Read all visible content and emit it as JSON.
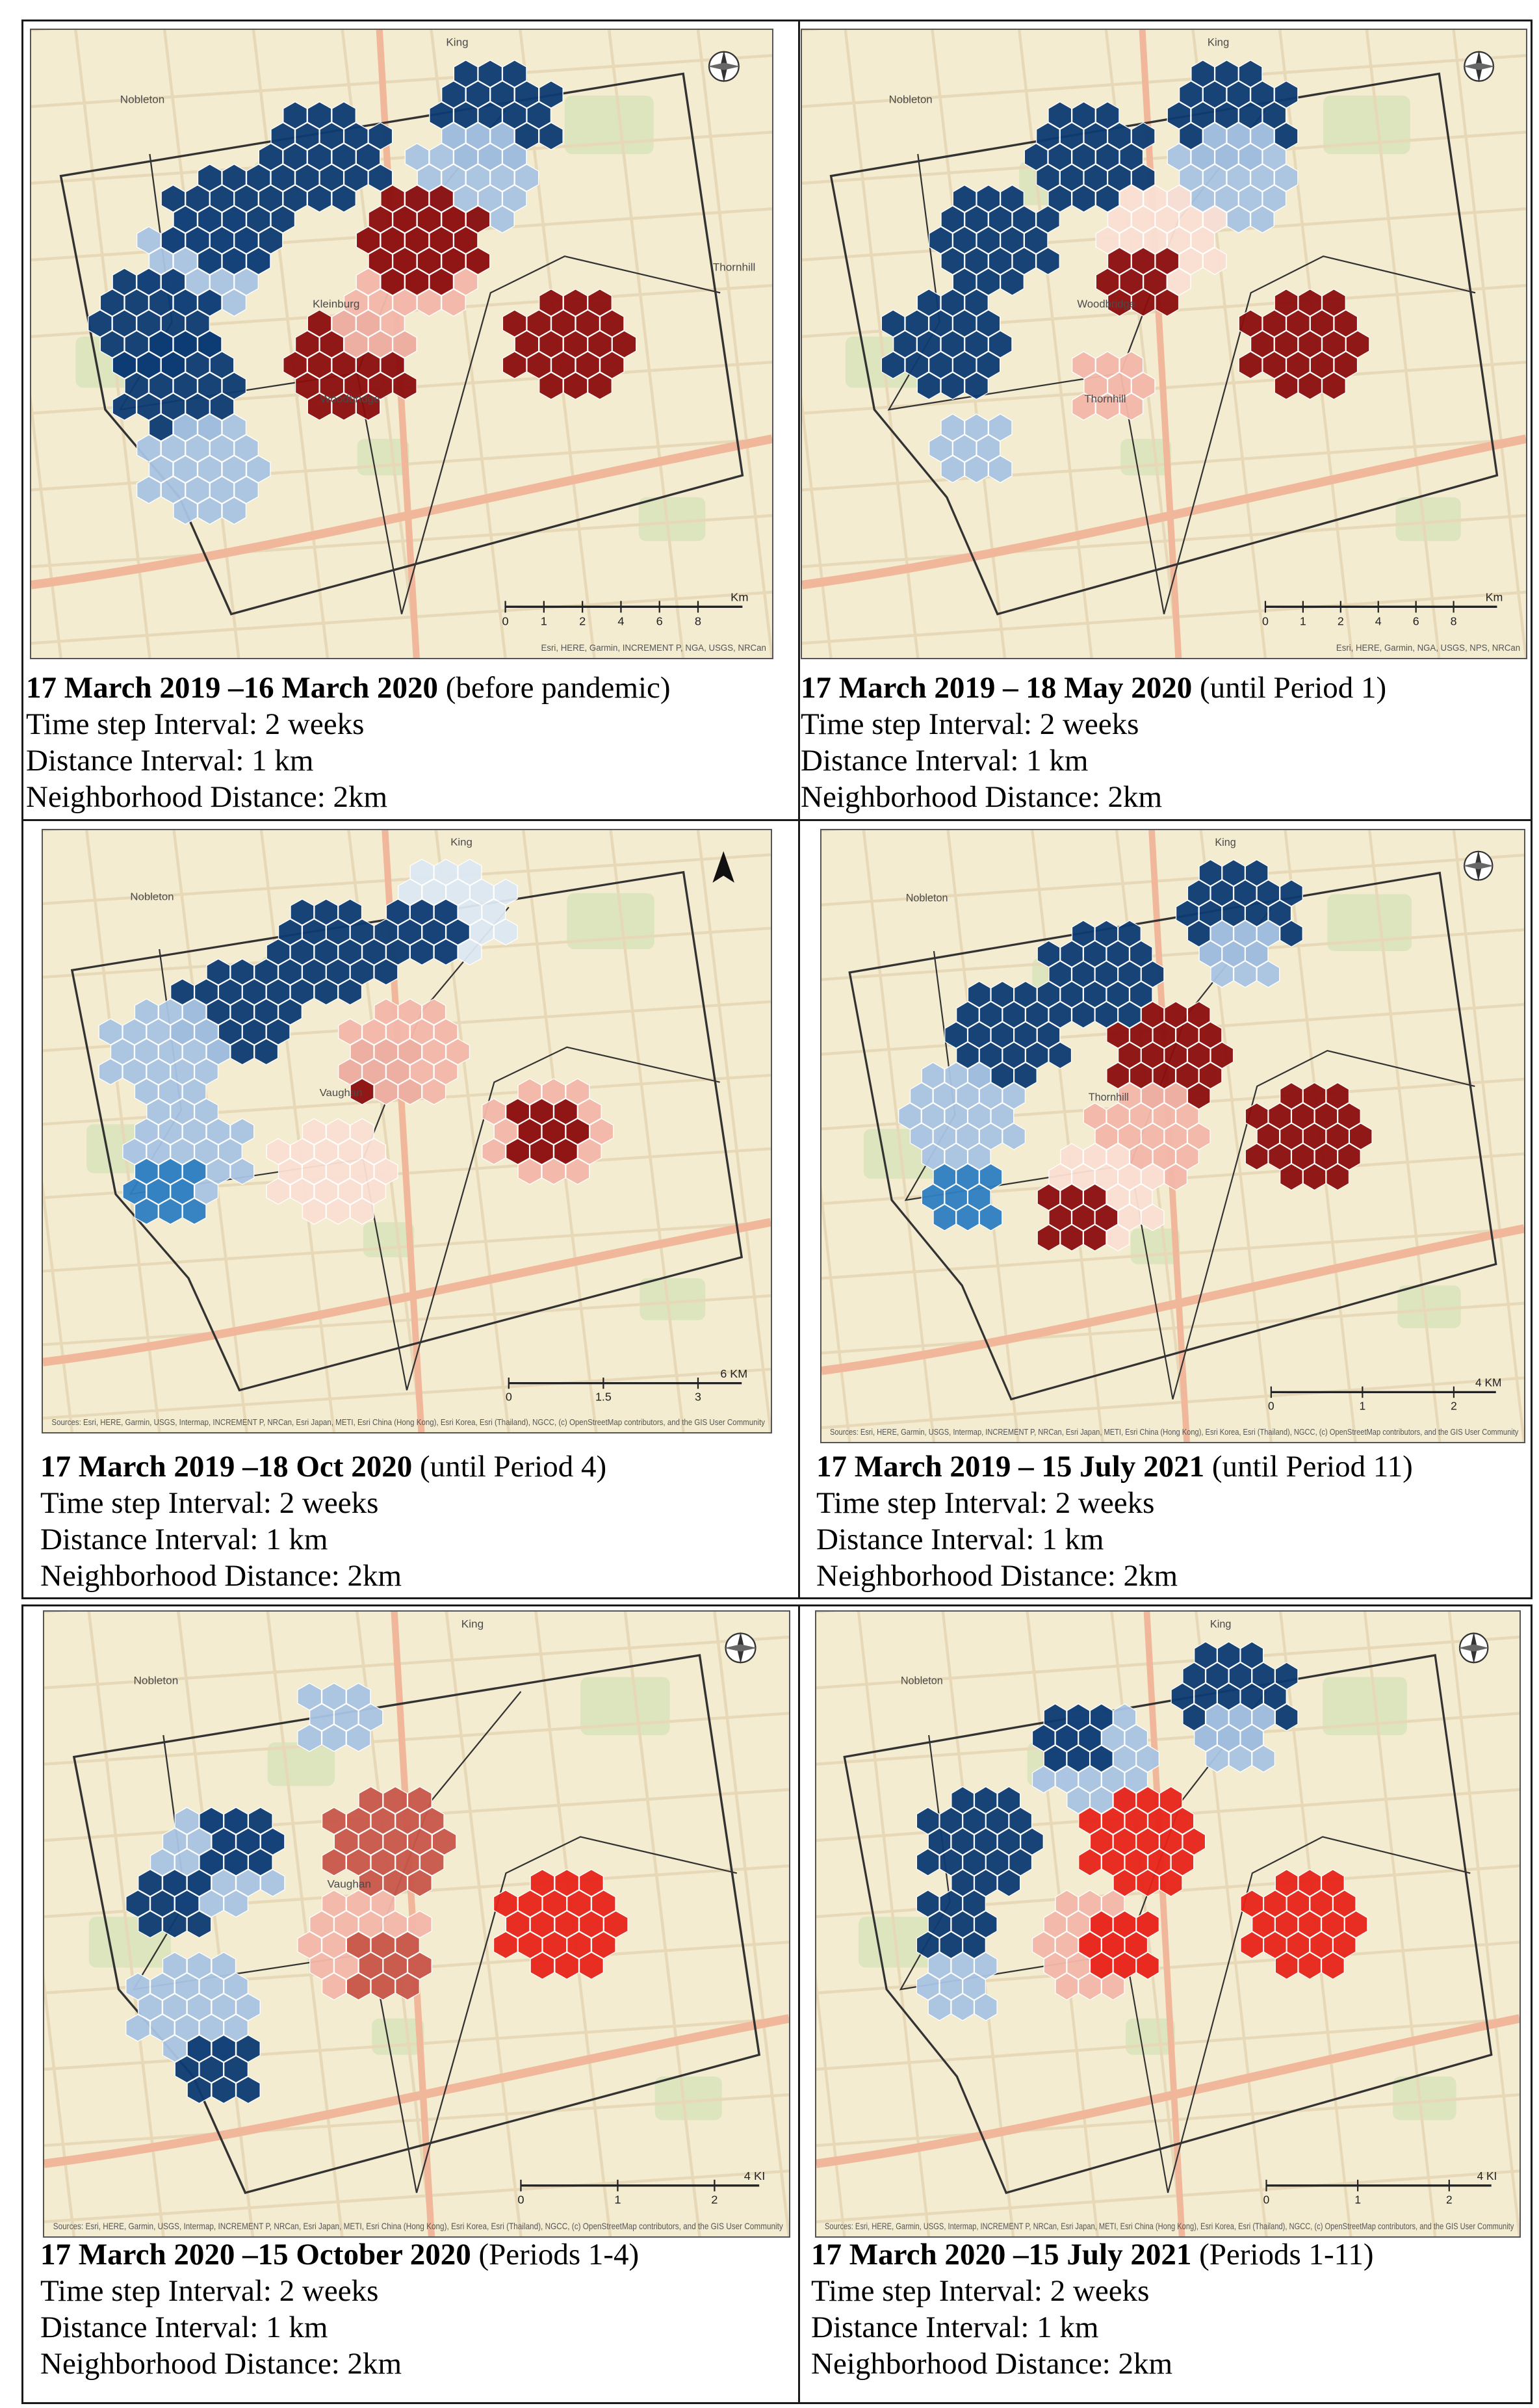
{
  "panels": [
    {
      "date_bold": "17 March 2019 –16 March 2020",
      "date_note": " (before pandemic)",
      "timestep": "Time step Interval: 2 weeks",
      "distance": "Distance Interval: 1 km",
      "neighborhood": "Neighborhood Distance: 2km",
      "map_labels": [
        "King",
        "Nobleton",
        "Kleinburg",
        "Woodbridge",
        "Thornhill"
      ],
      "scale_label": "Km",
      "scale_ticks": [
        "0",
        "1",
        "2",
        "4",
        "6",
        "8"
      ],
      "attribution": "Esri, HERE, Garmin, INCREMENT P, NGA, USGS, NRCan",
      "north_arrow": "compass-rose-icon"
    },
    {
      "date_bold": "17 March 2019 – 18 May 2020",
      "date_note": " (until Period 1)",
      "timestep": "Time step Interval: 2 weeks",
      "distance": "Distance Interval: 1 km",
      "neighborhood": "Neighborhood Distance: 2km",
      "map_labels": [
        "King",
        "Nobleton",
        "Woodbridge",
        "Thornhill"
      ],
      "scale_label": "Km",
      "scale_ticks": [
        "0",
        "1",
        "2",
        "4",
        "6",
        "8"
      ],
      "attribution": "Esri, HERE, Garmin, NGA, USGS, NPS, NRCan",
      "north_arrow": "compass-rose-icon"
    },
    {
      "date_bold": "17 March 2019 –18 Oct 2020",
      "date_note": " (until Period 4)",
      "timestep": "Time step Interval: 2 weeks",
      "distance": "Distance Interval: 1 km",
      "neighborhood": "Neighborhood Distance: 2km",
      "map_labels": [
        "King",
        "Nobleton",
        "Vaughan"
      ],
      "scale_label": "6 KM",
      "scale_ticks": [
        "0",
        "1.5",
        "3"
      ],
      "attribution": "Sources: Esri, HERE, Garmin, USGS, Intermap, INCREMENT P, NRCan, Esri Japan, METI, Esri China (Hong Kong), Esri Korea, Esri (Thailand), NGCC, (c) OpenStreetMap contributors, and the GIS User Community",
      "north_arrow": "north-arrow-icon"
    },
    {
      "date_bold": "17 March 2019 – 15 July 2021",
      "date_note": " (until Period 11)",
      "timestep": "Time step Interval: 2 weeks",
      "distance": "Distance Interval: 1 km",
      "neighborhood": "Neighborhood Distance: 2km",
      "map_labels": [
        "King",
        "Nobleton",
        "Thornhill"
      ],
      "scale_label": "4 KM",
      "scale_ticks": [
        "0",
        "1",
        "2"
      ],
      "attribution": "Sources: Esri, HERE, Garmin, USGS, Intermap, INCREMENT P, NRCan, Esri Japan, METI, Esri China (Hong Kong), Esri Korea, Esri (Thailand), NGCC, (c) OpenStreetMap contributors, and the GIS User Community",
      "north_arrow": "compass-rose-icon"
    },
    {
      "date_bold": "17 March 2020 –15 October 2020",
      "date_note": " (Periods 1-4)",
      "timestep": "Time step Interval: 2 weeks",
      "distance": "Distance Interval: 1 km",
      "neighborhood": "Neighborhood Distance: 2km",
      "map_labels": [
        "King",
        "Nobleton",
        "Vaughan"
      ],
      "scale_label": "4 KI",
      "scale_ticks": [
        "0",
        "1",
        "2"
      ],
      "attribution": "Sources: Esri, HERE, Garmin, USGS, Intermap, INCREMENT P, NRCan, Esri Japan, METI, Esri China (Hong Kong), Esri Korea, Esri (Thailand), NGCC, (c) OpenStreetMap contributors, and the GIS User Community",
      "north_arrow": "compass-rose-icon"
    },
    {
      "date_bold": "17 March 2020 –15 July 2021",
      "date_note": " (Periods 1-11)",
      "timestep": "Time step Interval: 2 weeks",
      "distance": "Distance Interval: 1 km",
      "neighborhood": "Neighborhood Distance: 2km",
      "map_labels": [
        "King",
        "Nobleton"
      ],
      "scale_label": "4 KI",
      "scale_ticks": [
        "0",
        "1",
        "2"
      ],
      "attribution": "Sources: Esri, HERE, Garmin, USGS, Intermap, INCREMENT P, NRCan, Esri Japan, METI, Esri China (Hong Kong), Esri Korea, Esri (Thailand), NGCC, (c) OpenStreetMap contributors, and the GIS User Community",
      "north_arrow": "compass-rose-icon"
    }
  ],
  "colors": {
    "base_map": "#f3ecd0",
    "park": "#d6e4b8",
    "road_major": "#f0b79a",
    "road_minor": "#e7d9b8",
    "boundary": "#333333",
    "cold_spot": "#0d3b73",
    "cold_light": "#a9c4e4",
    "cold_pale": "#dde8f2",
    "cold_mid": "#2f7fc2",
    "hot_spot": "#8b0e0e",
    "hot_mid": "#c8574a",
    "hot_light": "#f4b8ab",
    "hot_pale": "#fbe0d4",
    "hot_intense": "#e8231a"
  }
}
